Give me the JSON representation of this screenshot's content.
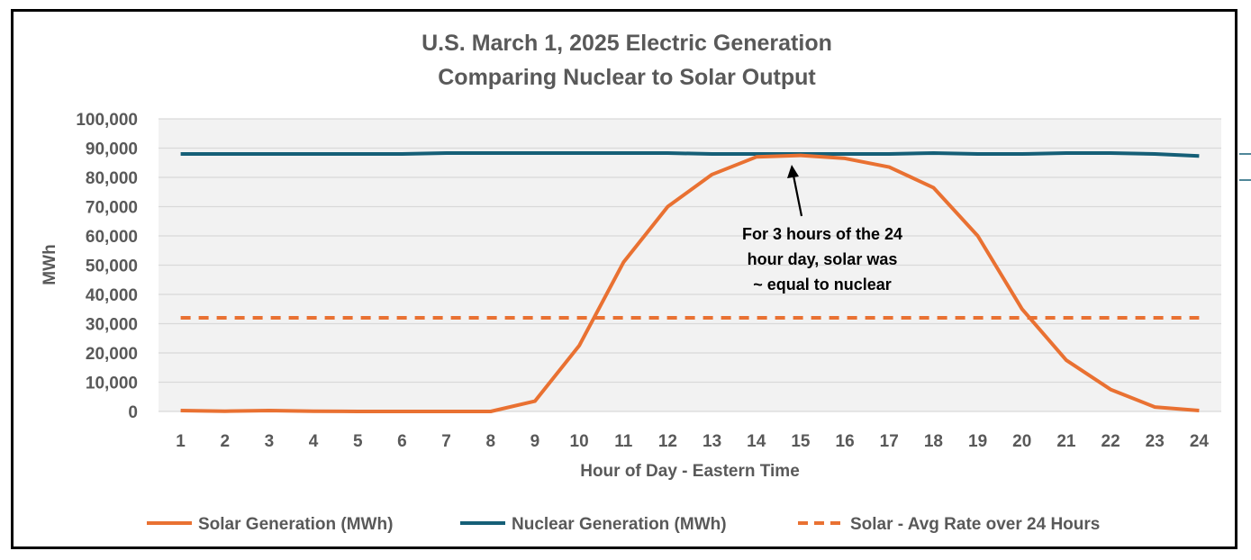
{
  "chart_data": {
    "type": "line",
    "title": "U.S. March 1, 2025  Electric Generation",
    "subtitle": "Comparing Nuclear to Solar Output",
    "xlabel": "Hour of Day - Eastern Time",
    "ylabel": "MWh",
    "ylim": [
      0,
      100000
    ],
    "yticks": [
      0,
      10000,
      20000,
      30000,
      40000,
      50000,
      60000,
      70000,
      80000,
      90000,
      100000
    ],
    "ytick_labels": [
      "0",
      "10,000",
      "20,000",
      "30,000",
      "40,000",
      "50,000",
      "60,000",
      "70,000",
      "80,000",
      "90,000",
      "100,000"
    ],
    "x": [
      1,
      2,
      3,
      4,
      5,
      6,
      7,
      8,
      9,
      10,
      11,
      12,
      13,
      14,
      15,
      16,
      17,
      18,
      19,
      20,
      21,
      22,
      23,
      24
    ],
    "grid": true,
    "legend_position": "bottom",
    "series": [
      {
        "name": "Solar Generation (MWh)",
        "style": "solid",
        "color": "#E97132",
        "values": [
          300,
          100,
          300,
          100,
          0,
          0,
          0,
          0,
          3500,
          22500,
          51000,
          70000,
          81000,
          87000,
          87500,
          86500,
          83500,
          76500,
          60000,
          35000,
          17500,
          7500,
          1500,
          300
        ]
      },
      {
        "name": "Nuclear Generation (MWh)",
        "style": "solid",
        "color": "#155F77",
        "values": [
          88000,
          88000,
          88000,
          88000,
          88000,
          88000,
          88300,
          88300,
          88300,
          88300,
          88300,
          88300,
          88000,
          88000,
          88000,
          88000,
          88000,
          88300,
          88000,
          88000,
          88300,
          88300,
          88000,
          87300
        ]
      },
      {
        "name": "Solar - Avg Rate over 24 Hours",
        "style": "dashed",
        "color": "#E97132",
        "values": [
          32000,
          32000,
          32000,
          32000,
          32000,
          32000,
          32000,
          32000,
          32000,
          32000,
          32000,
          32000,
          32000,
          32000,
          32000,
          32000,
          32000,
          32000,
          32000,
          32000,
          32000,
          32000,
          32000,
          32000
        ]
      }
    ],
    "annotation": {
      "lines": [
        "For 3 hours of the 24",
        "hour day, solar was",
        "~ equal to nuclear"
      ],
      "arrow_target": {
        "x": 15,
        "y": 87500
      }
    }
  }
}
